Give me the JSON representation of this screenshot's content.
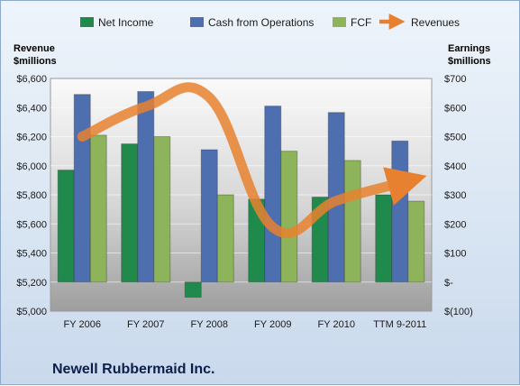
{
  "chart_data": {
    "type": "bar",
    "company_label": "Newell Rubbermaid Inc.",
    "categories": [
      "FY 2006",
      "FY 2007",
      "FY 2008",
      "FY 2009",
      "FY 2010",
      "TTM 9-2011"
    ],
    "left_axis": {
      "title_line1": "Revenue",
      "title_line2": "$millions",
      "range": [
        5000,
        6600
      ],
      "ticks": [
        5000,
        5200,
        5400,
        5600,
        5800,
        6000,
        6200,
        6400,
        6600
      ],
      "tick_labels": [
        "$5,000",
        "$5,200",
        "$5,400",
        "$5,600",
        "$5,800",
        "$6,000",
        "$6,200",
        "$6,400",
        "$6,600"
      ]
    },
    "right_axis": {
      "title_line1": "Earnings",
      "title_line2": "$millions",
      "range": [
        -100,
        700
      ],
      "ticks": [
        -100,
        0,
        100,
        200,
        300,
        400,
        500,
        600,
        700
      ],
      "tick_labels": [
        "$(100)",
        "$-",
        "$100",
        "$200",
        "$300",
        "$400",
        "$500",
        "$600",
        "$700"
      ]
    },
    "series": [
      {
        "name": "Net Income",
        "axis": "right",
        "kind": "bar",
        "color": "#1f8a4c",
        "values": [
          385,
          475,
          -52,
          285,
          292,
          300
        ]
      },
      {
        "name": "Cash from Operations",
        "axis": "right",
        "kind": "bar",
        "color": "#4d6fb0",
        "values": [
          645,
          655,
          455,
          605,
          583,
          485
        ]
      },
      {
        "name": "FCF",
        "axis": "right",
        "kind": "bar",
        "color": "#8db35b",
        "values": [
          505,
          500,
          300,
          450,
          418,
          278
        ]
      },
      {
        "name": "Revenues",
        "axis": "left",
        "kind": "line",
        "color": "#e8812f",
        "values": [
          6200,
          6407,
          6470,
          5577,
          5759,
          5880
        ]
      }
    ],
    "grid": true,
    "legend_position": "top"
  }
}
